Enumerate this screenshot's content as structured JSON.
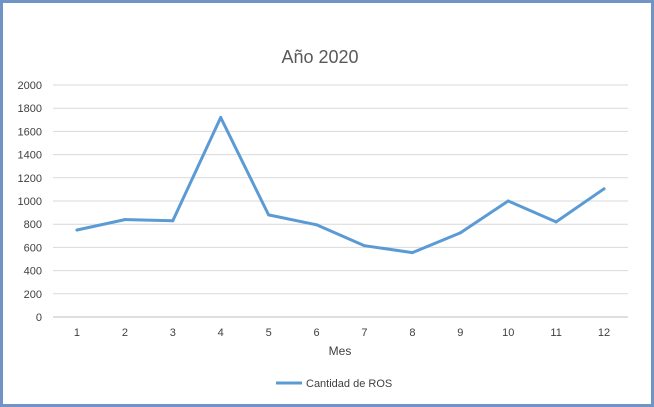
{
  "chart_data": {
    "type": "line",
    "title": "Año 2020",
    "xlabel": "Mes",
    "ylabel": "",
    "categories": [
      "1",
      "2",
      "3",
      "4",
      "5",
      "6",
      "7",
      "8",
      "9",
      "10",
      "11",
      "12"
    ],
    "series": [
      {
        "name": "Cantidad de ROS",
        "values": [
          750,
          840,
          830,
          1720,
          880,
          795,
          615,
          555,
          725,
          1000,
          820,
          1105
        ],
        "color": "#5b9bd5"
      }
    ],
    "ylim": [
      0,
      2000
    ],
    "yticks": [
      "0",
      "200",
      "400",
      "600",
      "800",
      "1000",
      "1200",
      "1400",
      "1600",
      "1800",
      "2000"
    ],
    "grid": true,
    "legend": "bottom"
  },
  "colors": {
    "border": "#7194c7",
    "grid": "#d9d9d9",
    "line": "#5b9bd5"
  }
}
